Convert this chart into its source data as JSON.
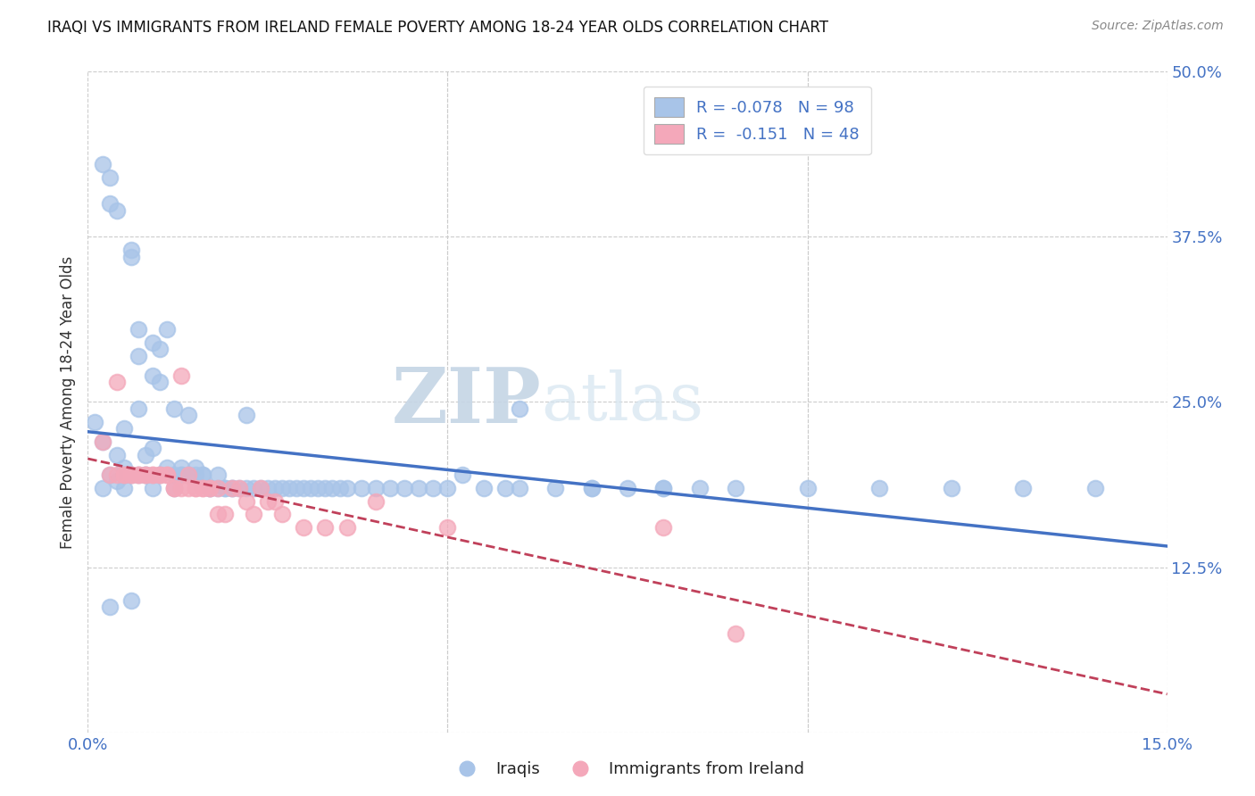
{
  "title": "IRAQI VS IMMIGRANTS FROM IRELAND FEMALE POVERTY AMONG 18-24 YEAR OLDS CORRELATION CHART",
  "source": "Source: ZipAtlas.com",
  "ylabel": "Female Poverty Among 18-24 Year Olds",
  "x_min": 0.0,
  "x_max": 0.15,
  "y_min": 0.0,
  "y_max": 0.5,
  "iraqi_R": "-0.078",
  "iraqi_N": "98",
  "ireland_R": "-0.151",
  "ireland_N": "48",
  "iraqi_color": "#a8c4e8",
  "ireland_color": "#f4a8ba",
  "iraqi_line_color": "#4472c4",
  "ireland_line_color": "#c0405a",
  "watermark_zip": "ZIP",
  "watermark_atlas": "atlas",
  "legend_label_iraqi": "Iraqis",
  "legend_label_ireland": "Immigrants from Ireland",
  "iraqi_x": [
    0.001,
    0.002,
    0.002,
    0.003,
    0.003,
    0.003,
    0.004,
    0.004,
    0.004,
    0.005,
    0.005,
    0.005,
    0.005,
    0.006,
    0.006,
    0.006,
    0.007,
    0.007,
    0.007,
    0.007,
    0.008,
    0.008,
    0.008,
    0.009,
    0.009,
    0.009,
    0.01,
    0.01,
    0.01,
    0.011,
    0.011,
    0.012,
    0.012,
    0.013,
    0.013,
    0.013,
    0.014,
    0.014,
    0.015,
    0.015,
    0.016,
    0.016,
    0.017,
    0.017,
    0.018,
    0.018,
    0.019,
    0.019,
    0.02,
    0.02,
    0.021,
    0.022,
    0.022,
    0.023,
    0.024,
    0.025,
    0.026,
    0.027,
    0.028,
    0.029,
    0.03,
    0.031,
    0.032,
    0.033,
    0.034,
    0.035,
    0.036,
    0.038,
    0.04,
    0.042,
    0.044,
    0.046,
    0.048,
    0.05,
    0.052,
    0.055,
    0.058,
    0.06,
    0.065,
    0.07,
    0.075,
    0.08,
    0.085,
    0.09,
    0.06,
    0.07,
    0.08,
    0.1,
    0.11,
    0.12,
    0.13,
    0.14,
    0.003,
    0.006,
    0.009,
    0.012,
    0.002,
    0.005
  ],
  "iraqi_y": [
    0.235,
    0.43,
    0.22,
    0.42,
    0.4,
    0.195,
    0.395,
    0.19,
    0.21,
    0.195,
    0.23,
    0.2,
    0.195,
    0.365,
    0.36,
    0.195,
    0.305,
    0.285,
    0.245,
    0.195,
    0.195,
    0.21,
    0.195,
    0.295,
    0.27,
    0.215,
    0.29,
    0.265,
    0.195,
    0.305,
    0.2,
    0.245,
    0.195,
    0.195,
    0.195,
    0.2,
    0.195,
    0.24,
    0.195,
    0.2,
    0.195,
    0.195,
    0.185,
    0.185,
    0.185,
    0.195,
    0.185,
    0.185,
    0.185,
    0.185,
    0.185,
    0.185,
    0.24,
    0.185,
    0.185,
    0.185,
    0.185,
    0.185,
    0.185,
    0.185,
    0.185,
    0.185,
    0.185,
    0.185,
    0.185,
    0.185,
    0.185,
    0.185,
    0.185,
    0.185,
    0.185,
    0.185,
    0.185,
    0.185,
    0.195,
    0.185,
    0.185,
    0.185,
    0.185,
    0.185,
    0.185,
    0.185,
    0.185,
    0.185,
    0.245,
    0.185,
    0.185,
    0.185,
    0.185,
    0.185,
    0.185,
    0.185,
    0.095,
    0.1,
    0.185,
    0.185,
    0.185,
    0.185
  ],
  "ireland_x": [
    0.002,
    0.003,
    0.004,
    0.004,
    0.005,
    0.005,
    0.006,
    0.006,
    0.007,
    0.007,
    0.008,
    0.008,
    0.009,
    0.009,
    0.01,
    0.01,
    0.011,
    0.011,
    0.012,
    0.012,
    0.013,
    0.013,
    0.014,
    0.014,
    0.015,
    0.015,
    0.016,
    0.016,
    0.017,
    0.017,
    0.018,
    0.018,
    0.019,
    0.02,
    0.021,
    0.022,
    0.023,
    0.024,
    0.025,
    0.026,
    0.027,
    0.03,
    0.033,
    0.036,
    0.04,
    0.05,
    0.08,
    0.09
  ],
  "ireland_y": [
    0.22,
    0.195,
    0.265,
    0.195,
    0.195,
    0.195,
    0.195,
    0.195,
    0.195,
    0.195,
    0.195,
    0.195,
    0.195,
    0.195,
    0.195,
    0.195,
    0.195,
    0.195,
    0.185,
    0.185,
    0.27,
    0.185,
    0.195,
    0.185,
    0.185,
    0.185,
    0.185,
    0.185,
    0.185,
    0.185,
    0.185,
    0.165,
    0.165,
    0.185,
    0.185,
    0.175,
    0.165,
    0.185,
    0.175,
    0.175,
    0.165,
    0.155,
    0.155,
    0.155,
    0.175,
    0.155,
    0.155,
    0.075
  ]
}
